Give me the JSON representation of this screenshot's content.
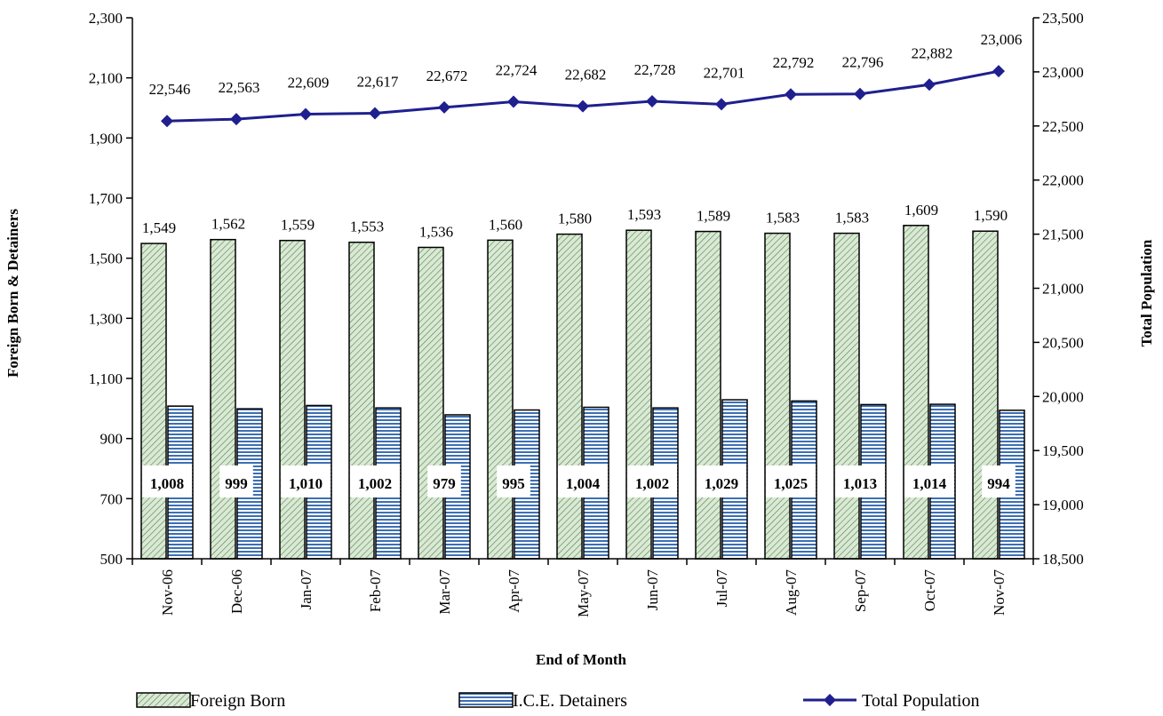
{
  "chart_data": {
    "type": "bar",
    "categories": [
      "Nov-06",
      "Dec-06",
      "Jan-07",
      "Feb-07",
      "Mar-07",
      "Apr-07",
      "May-07",
      "Jun-07",
      "Jul-07",
      "Aug-07",
      "Sep-07",
      "Oct-07",
      "Nov-07"
    ],
    "series": [
      {
        "name": "Foreign Born",
        "type": "bar",
        "axis": "left",
        "values": [
          1549,
          1562,
          1559,
          1553,
          1536,
          1560,
          1580,
          1593,
          1589,
          1583,
          1583,
          1609,
          1590
        ],
        "labels": [
          "1,549",
          "1,562",
          "1,559",
          "1,553",
          "1,536",
          "1,560",
          "1,580",
          "1,593",
          "1,589",
          "1,583",
          "1,583",
          "1,609",
          "1,590"
        ]
      },
      {
        "name": "I.C.E. Detainers",
        "type": "bar",
        "axis": "left",
        "values": [
          1008,
          999,
          1010,
          1002,
          979,
          995,
          1004,
          1002,
          1029,
          1025,
          1013,
          1014,
          994
        ],
        "labels": [
          "1,008",
          "999",
          "1,010",
          "1,002",
          "979",
          "995",
          "1,004",
          "1,002",
          "1,029",
          "1,025",
          "1,013",
          "1,014",
          "994"
        ]
      },
      {
        "name": "Total Population",
        "type": "line",
        "axis": "right",
        "values": [
          22546,
          22563,
          22609,
          22617,
          22672,
          22724,
          22682,
          22728,
          22701,
          22792,
          22796,
          22882,
          23006
        ],
        "labels": [
          "22,546",
          "22,563",
          "22,609",
          "22,617",
          "22,672",
          "22,724",
          "22,682",
          "22,728",
          "22,701",
          "22,792",
          "22,796",
          "22,882",
          "23,006"
        ]
      }
    ],
    "xlabel": "End of Month",
    "ylabel": "Foreign Born & Detainers",
    "ylabel_right": "Total Population",
    "ylim": [
      500,
      2300
    ],
    "yticks": [
      "500",
      "700",
      "900",
      "1,100",
      "1,300",
      "1,500",
      "1,700",
      "1,900",
      "2,100",
      "2,300"
    ],
    "ylim_right": [
      18500,
      23500
    ],
    "yticks_right": [
      "18,500",
      "19,000",
      "19,500",
      "20,000",
      "20,500",
      "21,000",
      "21,500",
      "22,000",
      "22,500",
      "23,000",
      "23,500"
    ],
    "grid": false,
    "legend": "bottom",
    "colors": {
      "foreign_born_fill": "#d9ead3",
      "foreign_born_hatch": "#5a7a5a",
      "ice_fill": "#c8d8ee",
      "ice_stripe": "#3d6fb3",
      "line": "#1f1f8f"
    }
  }
}
